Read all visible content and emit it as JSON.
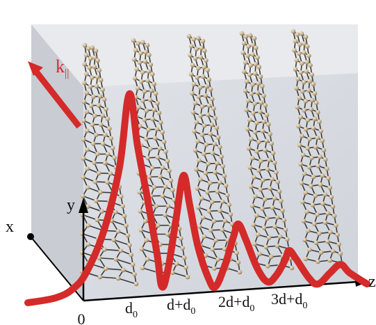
{
  "colors": {
    "wave": "#d42a2a",
    "box_front": "#d9dce2",
    "box_top": "#e7e9ee",
    "box_side": "#c5c9d0",
    "axis": "#000000",
    "atom": "#c7b28e",
    "bond": "#3a3a3a"
  },
  "k_label": {
    "main": "k",
    "sub": "||"
  },
  "axes": {
    "x": "x",
    "y": "y",
    "z": "z"
  },
  "ticks": [
    {
      "main": "0",
      "sub": ""
    },
    {
      "main": "d",
      "sub": "0"
    },
    {
      "main": "d+d",
      "sub": "0"
    },
    {
      "main": "2d+d",
      "sub": "0"
    },
    {
      "main": "3d+d",
      "sub": "0"
    }
  ]
}
